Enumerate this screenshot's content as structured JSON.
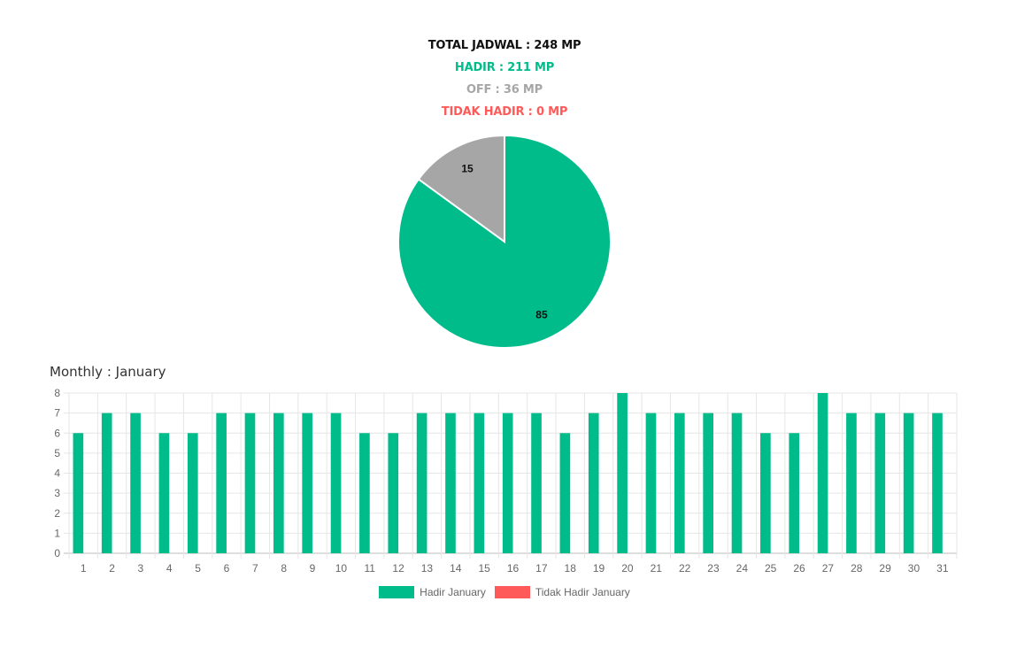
{
  "summary": {
    "total": "TOTAL JADWAL : 248 MP",
    "hadir": "HADIR : 211 MP",
    "off": "OFF : 36 MP",
    "tidak_hadir": "TIDAK HADIR : 0 MP"
  },
  "colors": {
    "hadir": "#00bc8a",
    "off": "#a6a6a6",
    "tidak_hadir": "#ff5a5a",
    "total": "#111111",
    "grid": "#e6e6e6",
    "tick": "#666666"
  },
  "monthly_title": "Monthly : January",
  "chart_data": [
    {
      "type": "pie",
      "slices": [
        {
          "label": "85",
          "value": 85,
          "color": "#00bc8a"
        },
        {
          "label": "15",
          "value": 15,
          "color": "#a6a6a6"
        }
      ]
    },
    {
      "type": "bar",
      "categories": [
        "1",
        "2",
        "3",
        "4",
        "5",
        "6",
        "7",
        "8",
        "9",
        "10",
        "11",
        "12",
        "13",
        "14",
        "15",
        "16",
        "17",
        "18",
        "19",
        "20",
        "21",
        "22",
        "23",
        "24",
        "25",
        "26",
        "27",
        "28",
        "29",
        "30",
        "31"
      ],
      "series": [
        {
          "name": "Hadir January",
          "color": "#00bc8a",
          "values": [
            6,
            7,
            7,
            6,
            6,
            7,
            7,
            7,
            7,
            7,
            6,
            6,
            7,
            7,
            7,
            7,
            7,
            6,
            7,
            8,
            7,
            7,
            7,
            7,
            6,
            6,
            8,
            7,
            7,
            7,
            7
          ]
        },
        {
          "name": "Tidak Hadir January",
          "color": "#ff5a5a",
          "values": [
            0,
            0,
            0,
            0,
            0,
            0,
            0,
            0,
            0,
            0,
            0,
            0,
            0,
            0,
            0,
            0,
            0,
            0,
            0,
            0,
            0,
            0,
            0,
            0,
            0,
            0,
            0,
            0,
            0,
            0,
            0
          ]
        }
      ],
      "ylim": [
        0,
        8
      ],
      "yticks": [
        "0",
        "1",
        "2",
        "3",
        "4",
        "5",
        "6",
        "7",
        "8"
      ],
      "grid": true,
      "legend": "bottom"
    }
  ]
}
